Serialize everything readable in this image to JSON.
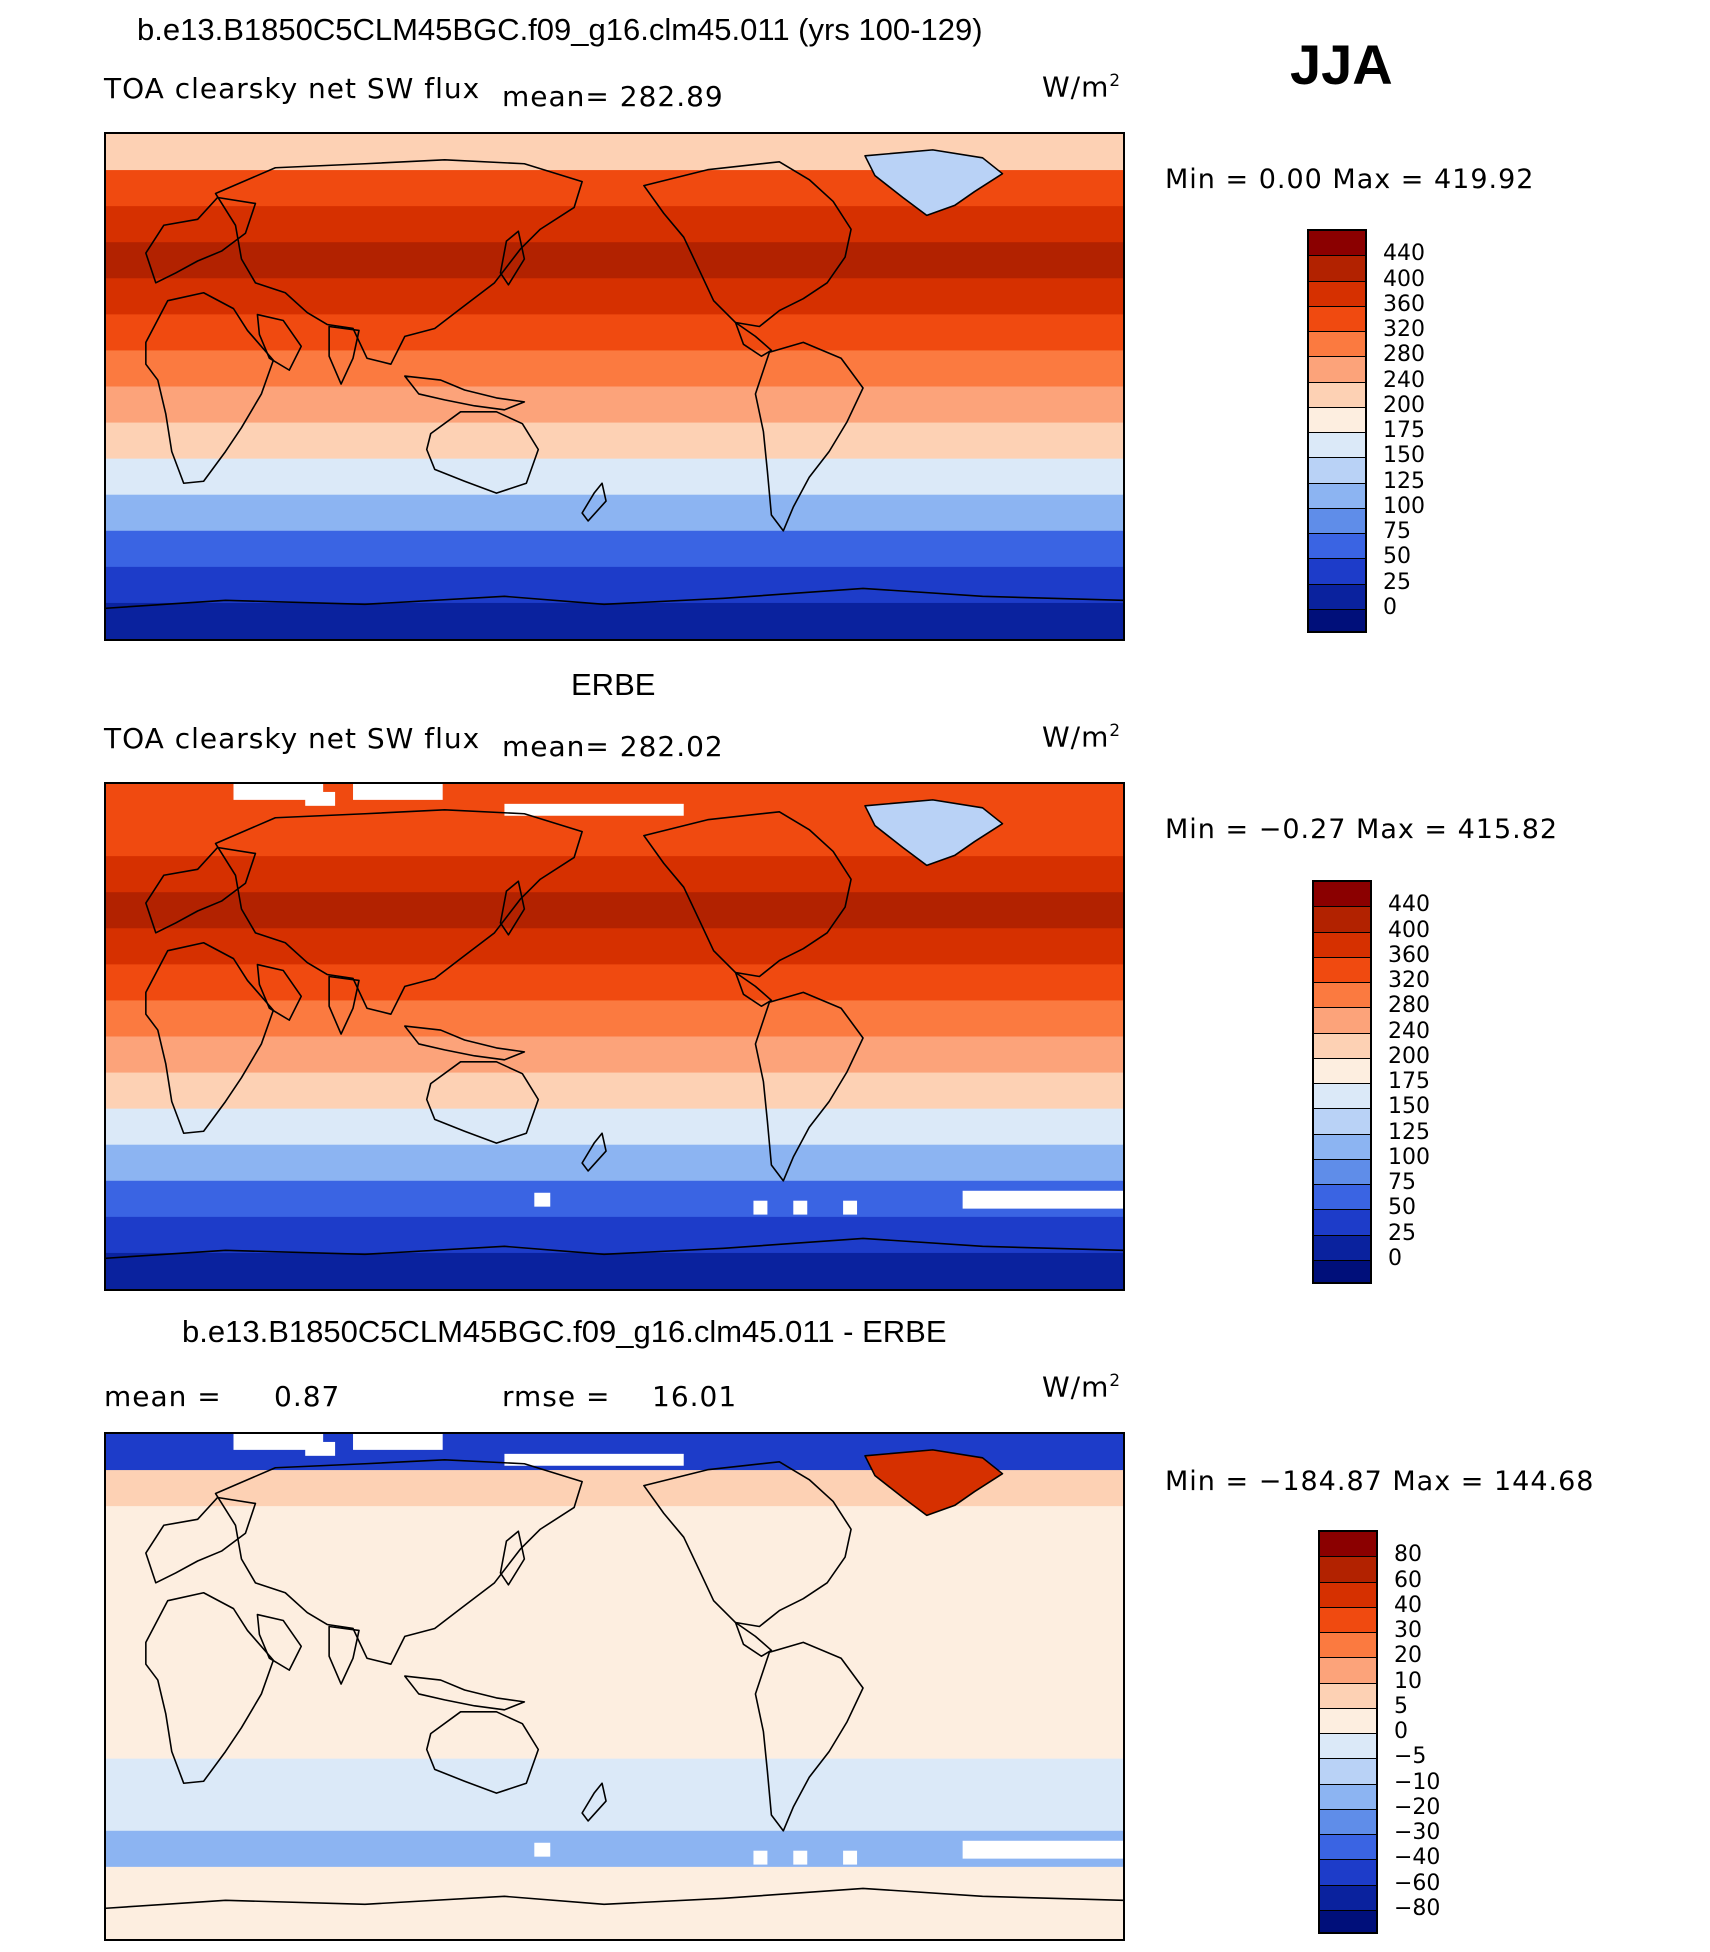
{
  "season": "JJA",
  "units_text": "W/m",
  "units_sup": "2",
  "panels": [
    {
      "title": "b.e13.B1850C5CLM45BGC.f09_g16.clm45.011 (yrs 100-129)",
      "subtitle": "TOA clearsky net SW flux",
      "mean_text": "mean= 282.89",
      "minmax_text": "Min =    0.00 Max = 419.92",
      "colorbar": {
        "labels": [
          "440",
          "400",
          "360",
          "320",
          "280",
          "240",
          "200",
          "175",
          "150",
          "125",
          "100",
          "75",
          "50",
          "25",
          "0"
        ],
        "colors": [
          "#8b0000",
          "#b22200",
          "#d63000",
          "#f04a10",
          "#fb7a40",
          "#fca37a",
          "#fdd1b4",
          "#fdeee0",
          "#dbe9f8",
          "#b9d2f6",
          "#8cb4f2",
          "#5f8de9",
          "#3a64e3",
          "#1d3cc9",
          "#0a229e",
          "#000f7a"
        ]
      },
      "map": {
        "bands": [
          "#fdd1b4",
          "#f04a10",
          "#d63000",
          "#b22200",
          "#d63000",
          "#f04a10",
          "#fb7a40",
          "#fca37a",
          "#fdd1b4",
          "#dbe9f8",
          "#8cb4f2",
          "#3a64e3",
          "#1d3cc9",
          "#0a229e"
        ],
        "greenland_color": "#b9d2f6",
        "missing": false
      }
    },
    {
      "title": "ERBE",
      "subtitle": "TOA clearsky net SW flux",
      "mean_text": "mean= 282.02",
      "minmax_text": "Min =  −0.27 Max = 415.82",
      "colorbar": {
        "labels": [
          "440",
          "400",
          "360",
          "320",
          "280",
          "240",
          "200",
          "175",
          "150",
          "125",
          "100",
          "75",
          "50",
          "25",
          "0"
        ],
        "colors": [
          "#8b0000",
          "#b22200",
          "#d63000",
          "#f04a10",
          "#fb7a40",
          "#fca37a",
          "#fdd1b4",
          "#fdeee0",
          "#dbe9f8",
          "#b9d2f6",
          "#8cb4f2",
          "#5f8de9",
          "#3a64e3",
          "#1d3cc9",
          "#0a229e",
          "#000f7a"
        ]
      },
      "map": {
        "bands": [
          "#f04a10",
          "#f04a10",
          "#d63000",
          "#b22200",
          "#d63000",
          "#f04a10",
          "#fb7a40",
          "#fca37a",
          "#fdd1b4",
          "#dbe9f8",
          "#8cb4f2",
          "#3a64e3",
          "#1d3cc9",
          "#0a229e"
        ],
        "greenland_color": "#b9d2f6",
        "missing": true
      }
    },
    {
      "title": "b.e13.B1850C5CLM45BGC.f09_g16.clm45.011 - ERBE",
      "mean_label": "mean =",
      "mean_value": "0.87",
      "rmse_label": "rmse =",
      "rmse_value": "16.01",
      "minmax_text": "Min = −184.87 Max = 144.68",
      "colorbar": {
        "labels": [
          "80",
          "60",
          "40",
          "30",
          "20",
          "10",
          "5",
          "0",
          "−5",
          "−10",
          "−20",
          "−30",
          "−40",
          "−60",
          "−80"
        ],
        "colors": [
          "#8b0000",
          "#b22200",
          "#d63000",
          "#f04a10",
          "#fb7a40",
          "#fca37a",
          "#fdd1b4",
          "#fdeee0",
          "#dbe9f8",
          "#b9d2f6",
          "#8cb4f2",
          "#5f8de9",
          "#3a64e3",
          "#1d3cc9",
          "#0a229e",
          "#000f7a"
        ]
      },
      "map": {
        "bands": [
          "#1d3cc9",
          "#fdd1b4",
          "#fdeee0",
          "#fdeee0",
          "#fdeee0",
          "#fdeee0",
          "#fdeee0",
          "#fdeee0",
          "#fdeee0",
          "#dbe9f8",
          "#dbe9f8",
          "#8cb4f2",
          "#fdeee0",
          "#fdeee0"
        ],
        "greenland_color": "#d63000",
        "missing": true
      }
    }
  ]
}
